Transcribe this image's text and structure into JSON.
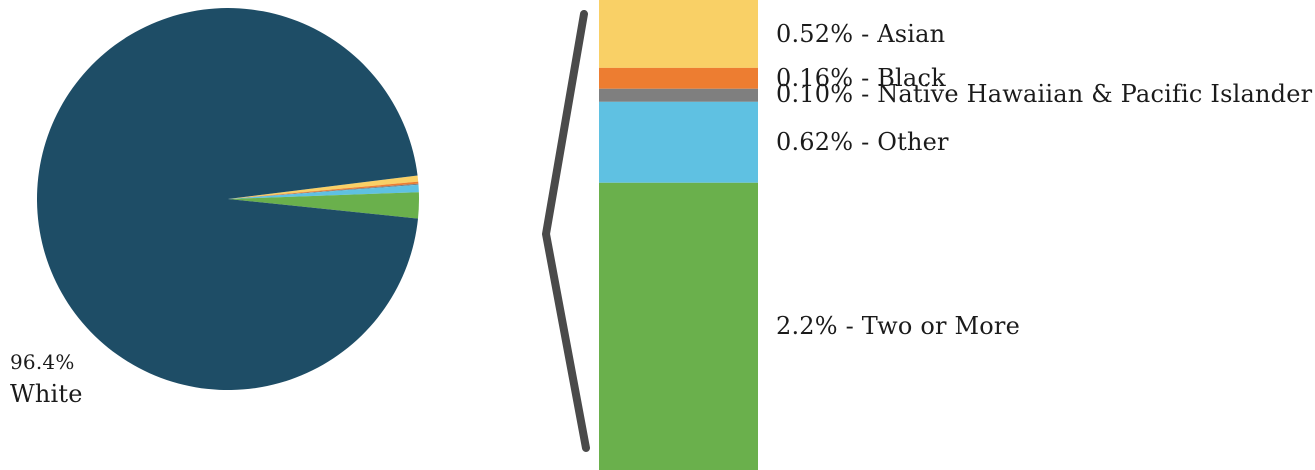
{
  "chart_data": {
    "type": "pie",
    "variant": "bar-of-pie",
    "main_slice": {
      "label": "White",
      "value_label": "96.4%",
      "value": 96.4,
      "color": "#1e4d66"
    },
    "breakdown": [
      {
        "label": "Asian",
        "value_label": "0.52%",
        "value": 0.52,
        "color": "#f9d066"
      },
      {
        "label": "Black",
        "value_label": "0.16%",
        "value": 0.16,
        "color": "#ed7d31"
      },
      {
        "label": "Native Hawaiian & Pacific Islander",
        "value_label": "0.10%",
        "value": 0.1,
        "color": "#7f7f7f"
      },
      {
        "label": "Other",
        "value_label": "0.62%",
        "value": 0.62,
        "color": "#5fc1e2"
      },
      {
        "label": "Two or More",
        "value_label": "2.2%",
        "value": 2.2,
        "color": "#6ab04c"
      }
    ],
    "separator": " - "
  },
  "colors": {
    "connector": "#4a4a4a",
    "background": "#ffffff"
  }
}
